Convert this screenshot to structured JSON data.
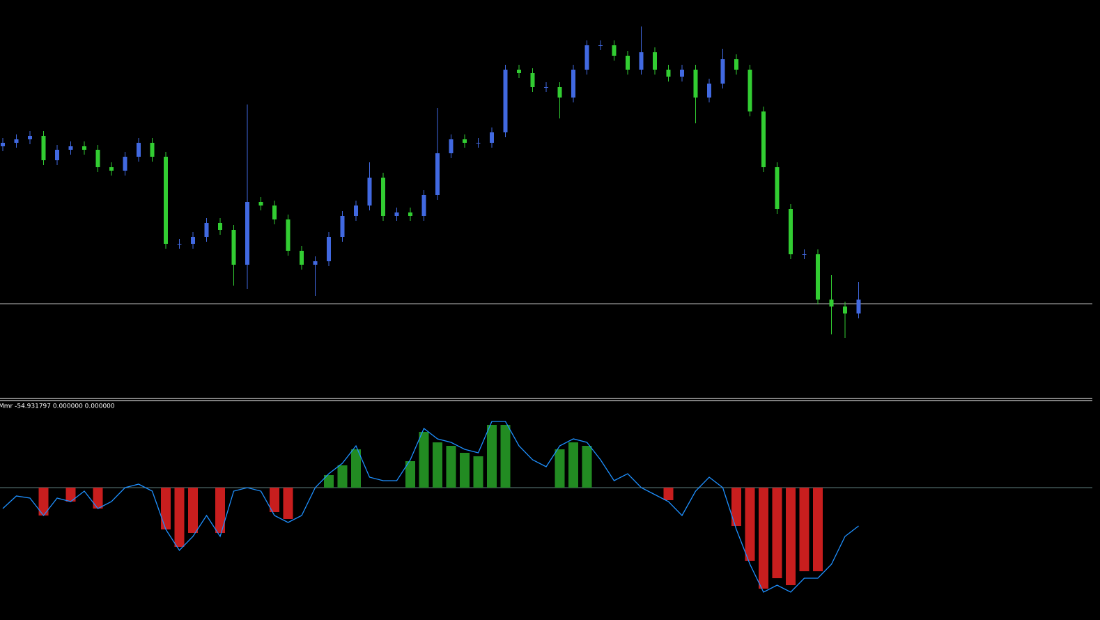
{
  "chart_data": [
    {
      "type": "candlestick",
      "up_color": "#4169e1",
      "down_color": "#32cd32",
      "ylim": [
        0,
        570
      ],
      "hline": 134,
      "hline_color": "#c0c0c0",
      "open": [
        360,
        365,
        370,
        375,
        340,
        355,
        360,
        355,
        330,
        325,
        345,
        365,
        345,
        220,
        220,
        230,
        250,
        240,
        190,
        280,
        275,
        255,
        210,
        190,
        195,
        230,
        260,
        275,
        315,
        260,
        265,
        260,
        290,
        350,
        370,
        365,
        365,
        380,
        470,
        465,
        445,
        445,
        430,
        470,
        505,
        505,
        490,
        470,
        495,
        470,
        460,
        470,
        430,
        450,
        485,
        470,
        410,
        330,
        270,
        205,
        205,
        140,
        130,
        120
      ],
      "high": [
        372,
        377,
        382,
        382,
        362,
        367,
        367,
        362,
        337,
        352,
        372,
        372,
        352,
        227,
        237,
        257,
        257,
        247,
        420,
        287,
        282,
        262,
        217,
        202,
        237,
        267,
        282,
        337,
        322,
        272,
        272,
        297,
        415,
        377,
        377,
        372,
        387,
        477,
        477,
        472,
        452,
        452,
        477,
        512,
        512,
        512,
        497,
        532,
        502,
        477,
        477,
        477,
        457,
        500,
        492,
        477,
        417,
        337,
        277,
        212,
        212,
        175,
        137,
        165
      ],
      "low": [
        353,
        358,
        363,
        333,
        333,
        348,
        348,
        323,
        318,
        318,
        338,
        338,
        213,
        213,
        213,
        223,
        233,
        160,
        155,
        268,
        248,
        203,
        183,
        145,
        188,
        223,
        253,
        268,
        253,
        253,
        253,
        253,
        283,
        343,
        358,
        358,
        358,
        373,
        458,
        438,
        438,
        400,
        423,
        463,
        498,
        483,
        463,
        463,
        463,
        453,
        453,
        393,
        423,
        443,
        463,
        403,
        323,
        263,
        198,
        198,
        133,
        90,
        85,
        113
      ],
      "close": [
        365,
        370,
        375,
        340,
        355,
        360,
        355,
        330,
        325,
        345,
        365,
        345,
        220,
        220,
        230,
        250,
        240,
        190,
        280,
        275,
        255,
        210,
        190,
        195,
        230,
        260,
        275,
        315,
        260,
        265,
        260,
        290,
        350,
        370,
        365,
        365,
        380,
        470,
        465,
        445,
        445,
        430,
        470,
        505,
        505,
        490,
        470,
        495,
        470,
        460,
        470,
        430,
        450,
        485,
        470,
        410,
        330,
        270,
        205,
        205,
        140,
        130,
        120,
        140
      ]
    },
    {
      "type": "histogram-line",
      "label": "Mmr -54.931797 0.000000 0.000000",
      "ylim": [
        -184,
        123
      ],
      "zero_line": 0,
      "zero_color": "#5f7f7f",
      "histogram": {
        "up_color": "#228b22",
        "down_color": "#c81e1e",
        "values": [
          null,
          null,
          null,
          -40,
          null,
          -20,
          null,
          -30,
          null,
          null,
          null,
          null,
          -60,
          -85,
          -65,
          null,
          -65,
          null,
          null,
          null,
          -35,
          -45,
          null,
          0,
          18,
          32,
          55,
          null,
          null,
          null,
          38,
          80,
          65,
          60,
          50,
          45,
          90,
          90,
          null,
          null,
          null,
          55,
          65,
          60,
          null,
          null,
          null,
          null,
          null,
          -18,
          null,
          null,
          null,
          null,
          -55,
          -105,
          -145,
          -130,
          -140,
          -120,
          -120,
          null,
          null,
          null
        ]
      },
      "line": {
        "color": "#1e90ff",
        "values": [
          -30,
          -12,
          -15,
          -40,
          -15,
          -20,
          -5,
          -30,
          -20,
          0,
          5,
          -5,
          -60,
          -90,
          -70,
          -40,
          -70,
          -5,
          0,
          -5,
          -40,
          -50,
          -40,
          0,
          20,
          35,
          60,
          15,
          10,
          10,
          40,
          85,
          70,
          65,
          55,
          50,
          95,
          95,
          60,
          40,
          30,
          60,
          70,
          65,
          40,
          10,
          20,
          0,
          -10,
          -20,
          -40,
          -5,
          15,
          0,
          -60,
          -110,
          -150,
          -140,
          -150,
          -130,
          -130,
          -110,
          -70,
          -55
        ]
      }
    }
  ]
}
